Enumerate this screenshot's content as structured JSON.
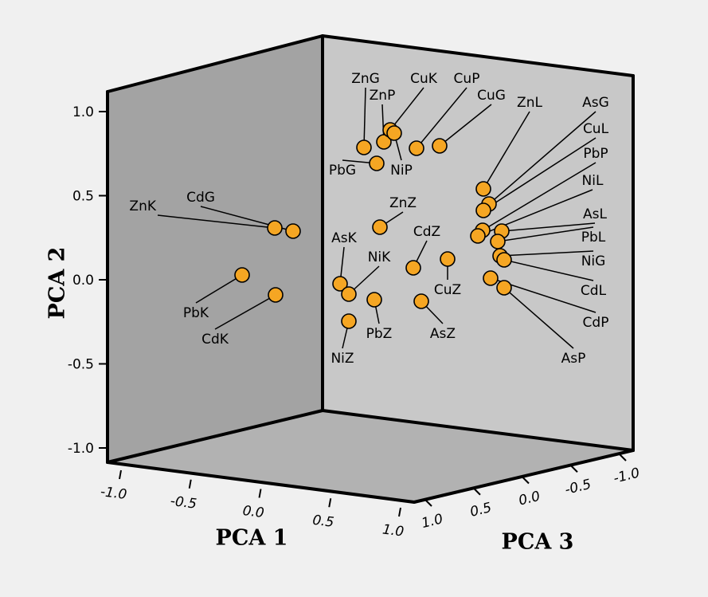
{
  "chart_data": {
    "type": "scatter",
    "projection": "3d",
    "axes": {
      "x": {
        "label": "PCA 1",
        "range": [
          -1.0,
          1.0
        ],
        "ticks": [
          "-1.0",
          "-0.5",
          "0.0",
          "0.5",
          "1.0"
        ]
      },
      "y": {
        "label": "PCA 2",
        "range": [
          -1.0,
          1.0
        ],
        "ticks": [
          "-1.0",
          "-0.5",
          "0.0",
          "0.5",
          "1.0"
        ]
      },
      "z": {
        "label": "PCA 3",
        "range": [
          -1.0,
          1.0
        ],
        "ticks": [
          "1.0",
          "0.5",
          "0.0",
          "-0.5",
          "-1.0"
        ]
      }
    },
    "colors": {
      "background": "#f0f0f0",
      "back_wall": "#c8c8c8",
      "left_wall": "#a3a3a3",
      "floor": "#b2b2b2",
      "edge": "#000000",
      "point_fill": "#f5a623",
      "point_stroke": "#000000"
    },
    "points": [
      {
        "label": "ZnK",
        "pca1": 0.22,
        "pca2": 0.3,
        "pca3": 0.4
      },
      {
        "label": "CdG",
        "pca1": 0.28,
        "pca2": 0.29,
        "pca3": 0.4
      },
      {
        "label": "PbK",
        "pca1": 0.0,
        "pca2": 0.03,
        "pca3": 0.4
      },
      {
        "label": "CdK",
        "pca1": 0.22,
        "pca2": -0.09,
        "pca3": 0.4
      },
      {
        "label": "ZnG",
        "pca1": 0.9,
        "pca2": 0.8,
        "pca3": 0.8
      },
      {
        "label": "ZnP",
        "pca1": 0.9,
        "pca2": 0.83,
        "pca3": 0.63
      },
      {
        "label": "CuK",
        "pca1": 0.9,
        "pca2": 0.89,
        "pca3": 0.55
      },
      {
        "label": "PbG",
        "pca1": 0.9,
        "pca2": 0.7,
        "pca3": 0.72
      },
      {
        "label": "NiP",
        "pca1": 0.9,
        "pca2": 0.87,
        "pca3": 0.5
      },
      {
        "label": "CuP",
        "pca1": 0.9,
        "pca2": 0.78,
        "pca3": 0.25
      },
      {
        "label": "CuG",
        "pca1": 0.9,
        "pca2": 0.8,
        "pca3": 0.1
      },
      {
        "label": "ZnZ",
        "pca1": 0.9,
        "pca2": 0.31,
        "pca3": 0.7
      },
      {
        "label": "CdZ",
        "pca1": 0.9,
        "pca2": 0.06,
        "pca3": 0.35
      },
      {
        "label": "CuZ",
        "pca1": 0.9,
        "pca2": 0.12,
        "pca3": 0.12
      },
      {
        "label": "AsK",
        "pca1": 0.9,
        "pca2": -0.03,
        "pca3": 0.95
      },
      {
        "label": "NiK",
        "pca1": 0.9,
        "pca2": -0.09,
        "pca3": 0.9
      },
      {
        "label": "PbZ",
        "pca1": 0.9,
        "pca2": -0.12,
        "pca3": 0.65
      },
      {
        "label": "NiZ",
        "pca1": 0.9,
        "pca2": -0.26,
        "pca3": 0.92
      },
      {
        "label": "AsZ",
        "pca1": 0.9,
        "pca2": -0.13,
        "pca3": 0.3
      },
      {
        "label": "ZnL",
        "pca1": 0.9,
        "pca2": 0.55,
        "pca3": -0.4
      },
      {
        "label": "AsG",
        "pca1": 0.9,
        "pca2": 0.46,
        "pca3": -0.43
      },
      {
        "label": "CuL",
        "pca1": 0.9,
        "pca2": 0.42,
        "pca3": -0.4
      },
      {
        "label": "PbP",
        "pca1": 0.9,
        "pca2": 0.29,
        "pca3": -0.38
      },
      {
        "label": "NiL",
        "pca1": 0.9,
        "pca2": 0.25,
        "pca3": -0.35
      },
      {
        "label": "AsL",
        "pca1": 0.9,
        "pca2": 0.29,
        "pca3": -0.5
      },
      {
        "label": "PbL",
        "pca1": 0.9,
        "pca2": 0.22,
        "pca3": -0.48
      },
      {
        "label": "NiG",
        "pca1": 0.9,
        "pca2": 0.14,
        "pca3": -0.47
      },
      {
        "label": "CdL",
        "pca1": 0.9,
        "pca2": 0.12,
        "pca3": -0.5
      },
      {
        "label": "CdP",
        "pca1": 0.9,
        "pca2": 0.0,
        "pca3": -0.45
      },
      {
        "label": "AsP",
        "pca1": 0.9,
        "pca2": -0.05,
        "pca3": -0.57
      }
    ]
  }
}
